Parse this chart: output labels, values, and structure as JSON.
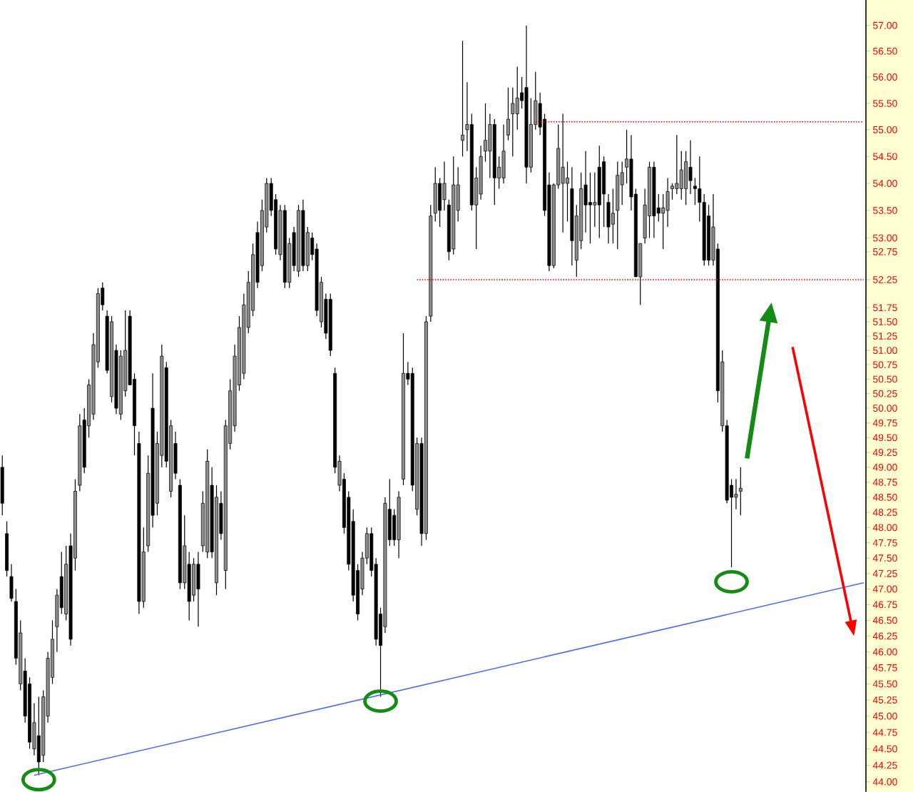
{
  "chart_data": {
    "type": "candlestick",
    "categories": [
      null,
      null,
      null,
      null,
      null,
      null,
      null,
      null,
      null,
      null,
      null,
      null,
      null,
      null,
      null,
      null,
      null,
      null,
      null,
      null,
      null,
      null,
      null,
      null,
      null,
      null,
      null,
      null,
      null,
      null,
      null,
      null,
      null,
      null,
      null,
      null,
      null,
      null,
      null,
      null,
      null,
      null,
      null,
      null,
      null,
      null,
      null,
      null,
      null,
      null,
      null,
      null,
      null,
      null,
      null,
      null,
      null,
      null,
      null,
      null,
      null,
      null,
      null,
      null,
      null,
      null,
      null,
      null,
      null,
      null,
      null,
      null,
      null,
      null,
      null,
      null,
      null,
      null,
      null,
      null,
      null,
      null,
      null,
      null,
      null,
      null,
      null,
      null,
      null,
      null,
      null,
      null,
      null,
      null,
      null,
      null,
      null,
      null,
      null,
      null,
      null,
      null,
      null,
      null,
      null,
      null,
      null,
      null,
      null,
      null,
      null,
      null,
      null,
      null,
      null,
      null,
      null,
      null,
      null,
      null,
      null,
      null,
      null,
      null,
      null,
      null,
      null,
      null,
      null,
      null,
      null,
      null,
      null,
      null,
      null,
      null,
      null,
      null,
      null,
      null,
      null,
      null,
      null,
      null,
      null,
      null,
      null,
      null,
      null,
      null,
      null,
      null,
      null,
      null,
      null,
      null,
      null,
      null,
      null,
      null,
      null,
      null,
      null,
      null,
      null,
      null,
      null,
      null,
      null,
      null,
      null,
      null,
      null,
      null,
      null,
      null,
      null,
      null,
      null,
      null,
      null,
      null,
      null,
      null,
      null,
      null,
      null,
      null,
      null,
      null
    ],
    "ohlc": [
      [
        49.0,
        49.2,
        48.2,
        48.4
      ],
      [
        47.9,
        48.1,
        47.2,
        47.3
      ],
      [
        47.2,
        47.4,
        46.8,
        46.85
      ],
      [
        46.8,
        47.0,
        45.8,
        45.9
      ],
      [
        45.5,
        46.5,
        45.4,
        46.3
      ],
      [
        45.7,
        45.9,
        44.9,
        45.0
      ],
      [
        45.5,
        45.6,
        44.5,
        44.6
      ],
      [
        44.5,
        45.2,
        44.4,
        44.9
      ],
      [
        44.7,
        45.3,
        44.1,
        44.3
      ],
      [
        44.4,
        45.4,
        44.3,
        45.3
      ],
      [
        45.0,
        46.0,
        44.9,
        45.9
      ],
      [
        45.6,
        46.5,
        45.5,
        46.2
      ],
      [
        46.4,
        47.0,
        46.0,
        46.9
      ],
      [
        47.2,
        47.6,
        46.6,
        46.7
      ],
      [
        46.6,
        47.7,
        46.5,
        47.4
      ],
      [
        47.7,
        47.9,
        46.1,
        46.2
      ],
      [
        47.5,
        48.8,
        47.3,
        48.6
      ],
      [
        48.7,
        49.9,
        48.6,
        49.7
      ],
      [
        49.8,
        50.0,
        48.9,
        49.0
      ],
      [
        49.7,
        50.5,
        49.5,
        50.4
      ],
      [
        49.9,
        51.3,
        49.8,
        51.1
      ],
      [
        50.8,
        52.1,
        50.7,
        52.0
      ],
      [
        52.1,
        52.2,
        51.7,
        51.8
      ],
      [
        51.6,
        51.7,
        50.6,
        50.65
      ],
      [
        50.2,
        51.6,
        50.1,
        51.5
      ],
      [
        51.0,
        51.1,
        49.9,
        50.0
      ],
      [
        49.9,
        51.0,
        49.8,
        50.9
      ],
      [
        50.3,
        51.7,
        50.2,
        51.0
      ],
      [
        51.6,
        51.7,
        50.4,
        50.4
      ],
      [
        50.5,
        50.6,
        49.2,
        49.7
      ],
      [
        49.4,
        49.6,
        46.6,
        46.8
      ],
      [
        46.8,
        48.0,
        46.7,
        47.6
      ],
      [
        47.7,
        49.2,
        47.6,
        48.9
      ],
      [
        50.0,
        50.6,
        48.0,
        48.2
      ],
      [
        48.4,
        49.6,
        48.2,
        49.4
      ],
      [
        49.2,
        51.1,
        49.0,
        50.9
      ],
      [
        50.7,
        50.8,
        49.0,
        49.1
      ],
      [
        48.6,
        49.8,
        48.5,
        49.7
      ],
      [
        49.4,
        49.6,
        48.8,
        48.9
      ],
      [
        48.7,
        48.8,
        47.0,
        47.1
      ],
      [
        47.1,
        48.2,
        47.0,
        47.7
      ],
      [
        47.4,
        47.6,
        46.5,
        46.8
      ],
      [
        46.9,
        47.5,
        46.8,
        47.4
      ],
      [
        47.4,
        47.6,
        46.4,
        47.0
      ],
      [
        47.7,
        48.6,
        47.6,
        48.4
      ],
      [
        47.6,
        49.3,
        47.5,
        49.1
      ],
      [
        48.7,
        49.0,
        47.5,
        47.6
      ],
      [
        47.1,
        48.7,
        46.9,
        48.5
      ],
      [
        48.4,
        48.6,
        47.8,
        47.9
      ],
      [
        47.3,
        49.8,
        47.0,
        49.7
      ],
      [
        49.4,
        50.5,
        49.3,
        50.3
      ],
      [
        49.7,
        51.1,
        49.6,
        50.9
      ],
      [
        50.4,
        51.6,
        50.3,
        51.4
      ],
      [
        50.6,
        52.0,
        50.5,
        51.8
      ],
      [
        51.4,
        52.4,
        51.3,
        52.2
      ],
      [
        51.7,
        52.9,
        51.6,
        52.7
      ],
      [
        53.1,
        53.3,
        52.1,
        52.2
      ],
      [
        52.5,
        53.7,
        52.4,
        53.5
      ],
      [
        53.2,
        54.1,
        53.1,
        54.0
      ],
      [
        54.0,
        54.1,
        53.4,
        53.5
      ],
      [
        53.7,
        53.8,
        52.7,
        52.8
      ],
      [
        52.7,
        53.6,
        52.6,
        53.5
      ],
      [
        53.5,
        53.6,
        52.1,
        52.2
      ],
      [
        52.2,
        53.0,
        52.1,
        52.9
      ],
      [
        53.1,
        53.2,
        52.4,
        52.5
      ],
      [
        52.4,
        53.6,
        52.3,
        53.5
      ],
      [
        53.5,
        53.7,
        52.4,
        52.5
      ],
      [
        52.5,
        53.2,
        52.4,
        53.1
      ],
      [
        53.0,
        53.1,
        52.6,
        52.7
      ],
      [
        52.8,
        52.9,
        51.6,
        51.7
      ],
      [
        51.5,
        52.3,
        51.4,
        52.2
      ],
      [
        51.9,
        52.0,
        51.2,
        51.3
      ],
      [
        51.9,
        52.0,
        50.9,
        51.0
      ],
      [
        50.6,
        50.7,
        48.9,
        49.0
      ],
      [
        48.7,
        49.2,
        48.6,
        49.1
      ],
      [
        48.8,
        48.9,
        47.9,
        48.0
      ],
      [
        48.5,
        48.6,
        47.3,
        47.4
      ],
      [
        48.1,
        48.3,
        46.8,
        46.9
      ],
      [
        47.3,
        47.4,
        46.5,
        46.6
      ],
      [
        47.0,
        47.6,
        46.9,
        47.5
      ],
      [
        47.5,
        48.0,
        47.4,
        47.9
      ],
      [
        47.9,
        48.0,
        47.2,
        47.3
      ],
      [
        47.4,
        47.5,
        46.1,
        46.2
      ],
      [
        46.6,
        46.7,
        45.3,
        46.1
      ],
      [
        46.4,
        48.5,
        46.3,
        48.4
      ],
      [
        48.3,
        48.8,
        47.7,
        47.8
      ],
      [
        48.2,
        48.3,
        47.7,
        47.8
      ],
      [
        47.8,
        48.6,
        47.5,
        48.5
      ],
      [
        48.8,
        51.3,
        48.7,
        50.6
      ],
      [
        50.6,
        50.8,
        50.4,
        50.5
      ],
      [
        50.6,
        50.7,
        48.6,
        48.7
      ],
      [
        48.3,
        49.5,
        48.2,
        49.4
      ],
      [
        49.4,
        49.5,
        47.7,
        47.9
      ],
      [
        47.9,
        51.6,
        47.8,
        51.5
      ],
      [
        51.6,
        53.6,
        51.5,
        53.4
      ],
      [
        53.45,
        54.3,
        53.3,
        54.0
      ],
      [
        54.0,
        54.1,
        53.2,
        53.5
      ],
      [
        53.7,
        54.4,
        53.5,
        54.0
      ],
      [
        53.6,
        53.7,
        52.6,
        52.75
      ],
      [
        52.8,
        54.5,
        52.7,
        53.97
      ],
      [
        53.5,
        54.3,
        53.3,
        53.97
      ],
      [
        54.8,
        56.7,
        54.5,
        54.9
      ],
      [
        55.0,
        55.9,
        54.6,
        55.1
      ],
      [
        55.1,
        55.3,
        53.5,
        53.6
      ],
      [
        53.6,
        54.3,
        52.8,
        54.1
      ],
      [
        53.8,
        54.7,
        53.7,
        54.5
      ],
      [
        54.6,
        55.5,
        54.4,
        54.8
      ],
      [
        54.6,
        55.3,
        54.1,
        55.1
      ],
      [
        55.1,
        55.2,
        53.6,
        54.1
      ],
      [
        54.1,
        54.5,
        53.9,
        54.3
      ],
      [
        54.1,
        55.1,
        54.0,
        54.6
      ],
      [
        54.9,
        55.8,
        54.8,
        55.2
      ],
      [
        55.3,
        55.8,
        54.5,
        55.5
      ],
      [
        55.3,
        56.2,
        55.0,
        55.6
      ],
      [
        55.7,
        56.0,
        55.4,
        55.55
      ],
      [
        55.8,
        57.0,
        54.0,
        54.3
      ],
      [
        54.3,
        55.6,
        54.2,
        55.1
      ],
      [
        55.1,
        56.1,
        55.0,
        55.55
      ],
      [
        55.5,
        55.7,
        54.9,
        55.05
      ],
      [
        55.2,
        55.3,
        53.4,
        53.5
      ],
      [
        53.97,
        54.2,
        52.4,
        52.5
      ],
      [
        52.5,
        54.0,
        52.45,
        53.97
      ],
      [
        53.97,
        55.1,
        53.9,
        54.65
      ],
      [
        54.0,
        55.3,
        53.1,
        54.3
      ],
      [
        54.0,
        54.4,
        53.3,
        54.1
      ],
      [
        53.9,
        54.3,
        52.5,
        52.95
      ],
      [
        52.6,
        53.6,
        52.3,
        53.4
      ],
      [
        52.95,
        54.2,
        52.8,
        53.9
      ],
      [
        53.97,
        54.6,
        53.1,
        53.6
      ],
      [
        53.65,
        54.2,
        52.9,
        53.6
      ],
      [
        53.6,
        54.2,
        53.2,
        53.65
      ],
      [
        54.3,
        54.7,
        53.0,
        53.6
      ],
      [
        54.4,
        54.5,
        53.2,
        53.8
      ],
      [
        53.65,
        53.8,
        52.9,
        53.2
      ],
      [
        53.25,
        53.9,
        52.9,
        53.45
      ],
      [
        53.5,
        54.4,
        52.8,
        54.15
      ],
      [
        53.97,
        54.4,
        53.6,
        54.2
      ],
      [
        54.3,
        55.0,
        54.0,
        54.45
      ],
      [
        54.45,
        54.9,
        53.5,
        53.75
      ],
      [
        53.8,
        53.9,
        52.3,
        52.3
      ],
      [
        52.3,
        52.9,
        51.8,
        52.9
      ],
      [
        53.0,
        53.9,
        52.9,
        53.6
      ],
      [
        53.4,
        54.4,
        53.0,
        54.3
      ],
      [
        54.3,
        54.4,
        53.0,
        53.4
      ],
      [
        53.55,
        53.8,
        53.3,
        53.45
      ],
      [
        53.45,
        53.8,
        52.8,
        53.55
      ],
      [
        53.5,
        54.1,
        53.2,
        53.85
      ],
      [
        53.9,
        54.0,
        53.7,
        53.95
      ],
      [
        53.9,
        54.9,
        53.8,
        54.0
      ],
      [
        53.9,
        54.6,
        53.7,
        54.25
      ],
      [
        53.9,
        54.6,
        53.6,
        54.4
      ],
      [
        54.3,
        54.8,
        53.8,
        54.05
      ],
      [
        53.95,
        54.1,
        53.6,
        53.9
      ],
      [
        53.9,
        54.5,
        53.3,
        53.65
      ],
      [
        53.65,
        53.8,
        52.5,
        52.6
      ],
      [
        53.4,
        53.6,
        52.5,
        52.6
      ],
      [
        52.6,
        53.8,
        52.5,
        53.2
      ],
      [
        52.8,
        52.9,
        50.1,
        50.3
      ],
      [
        49.7,
        51.0,
        49.6,
        50.8
      ],
      [
        49.7,
        49.8,
        48.4,
        48.45
      ],
      [
        48.7,
        48.8,
        47.35,
        48.5
      ],
      [
        48.5,
        48.8,
        48.3,
        48.55
      ],
      [
        48.6,
        49.0,
        48.2,
        48.65
      ],
      null,
      null,
      null,
      null,
      null,
      null,
      null,
      null,
      null,
      null,
      null,
      null,
      null,
      null,
      null,
      null,
      null,
      null,
      null,
      null,
      null,
      null,
      null,
      null,
      null,
      null,
      null
    ],
    "colors": [
      "#000000",
      "#000000",
      "#000000",
      "#000000",
      "#8c8c8c",
      "#000000",
      "#000000",
      "#8c8c8c",
      "#000000",
      "#8c8c8c",
      "#8c8c8c",
      "#8c8c8c",
      "#8c8c8c",
      "#000000",
      "#8c8c8c",
      "#000000",
      "#8c8c8c",
      "#8c8c8c",
      "#000000",
      "#8c8c8c",
      "#8c8c8c",
      "#8c8c8c",
      "#000000",
      "#000000",
      "#8c8c8c",
      "#000000",
      "#8c8c8c",
      "#8c8c8c",
      "#000000",
      "#000000",
      "#000000",
      "#8c8c8c",
      "#8c8c8c",
      "#000000",
      "#8c8c8c",
      "#8c8c8c",
      "#000000",
      "#8c8c8c",
      "#000000",
      "#000000",
      "#8c8c8c",
      "#000000",
      "#8c8c8c",
      "#000000",
      "#8c8c8c",
      "#8c8c8c",
      "#000000",
      "#8c8c8c",
      "#000000",
      "#8c8c8c",
      "#8c8c8c",
      "#8c8c8c",
      "#8c8c8c",
      "#8c8c8c",
      "#8c8c8c",
      "#8c8c8c",
      "#000000",
      "#8c8c8c",
      "#8c8c8c",
      "#000000",
      "#000000",
      "#8c8c8c",
      "#000000",
      "#8c8c8c",
      "#000000",
      "#8c8c8c",
      "#000000",
      "#8c8c8c",
      "#000000",
      "#000000",
      "#8c8c8c",
      "#000000",
      "#000000",
      "#000000",
      "#8c8c8c",
      "#000000",
      "#000000",
      "#000000",
      "#000000",
      "#8c8c8c",
      "#8c8c8c",
      "#000000",
      "#000000",
      "#000000",
      "#8c8c8c",
      "#000000",
      "#000000",
      "#8c8c8c",
      "#8c8c8c",
      "#000000",
      "#000000",
      "#8c8c8c",
      "#000000",
      "#8c8c8c",
      "#8c8c8c",
      "#8c8c8c",
      "#000000",
      "#8c8c8c",
      "#000000",
      "#8c8c8c",
      "#8c8c8c",
      "#8c8c8c",
      "#8c8c8c",
      "#000000",
      "#8c8c8c",
      "#8c8c8c",
      "#8c8c8c",
      "#8c8c8c",
      "#000000",
      "#8c8c8c",
      "#8c8c8c",
      "#8c8c8c",
      "#8c8c8c",
      "#8c8c8c",
      "#000000",
      "#000000",
      "#8c8c8c",
      "#8c8c8c",
      "#000000",
      "#000000",
      "#000000",
      "#8c8c8c",
      "#8c8c8c",
      "#8c8c8c",
      "#8c8c8c",
      "#000000",
      "#8c8c8c",
      "#8c8c8c",
      "#000000",
      "#000000",
      "#8c8c8c",
      "#000000",
      "#000000",
      "#000000",
      "#8c8c8c",
      "#8c8c8c",
      "#8c8c8c",
      "#8c8c8c",
      "#000000",
      "#000000",
      "#8c8c8c",
      "#8c8c8c",
      "#8c8c8c",
      "#000000",
      "#000000",
      "#8c8c8c",
      "#8c8c8c",
      "#8c8c8c",
      "#8c8c8c",
      "#8c8c8c",
      "#8c8c8c",
      "#000000",
      "#000000",
      "#000000",
      "#000000",
      "#000000",
      "#8c8c8c",
      "#000000",
      "#8c8c8c",
      "#000000",
      "#000000",
      "#8c8c8c",
      "#8c8c8c",
      null,
      null,
      null,
      null,
      null,
      null,
      null,
      null,
      null,
      null,
      null,
      null,
      null,
      null,
      null,
      null,
      null,
      null,
      null,
      null,
      null,
      null,
      null,
      null,
      null,
      null,
      null
    ],
    "series": [
      {
        "type": "line",
        "color": "#4a6cf7",
        "values": [
          null,
          null,
          null,
          null,
          null,
          null,
          null,
          44.1,
          null,
          null,
          null,
          null,
          null,
          null,
          null,
          null,
          null,
          null,
          null,
          null,
          null,
          null,
          null,
          null,
          null,
          null,
          null,
          null,
          null,
          null,
          null,
          null,
          null,
          null,
          null,
          null,
          null,
          null,
          null,
          null,
          null,
          null,
          null,
          null,
          null,
          null,
          null,
          null,
          null,
          null,
          null,
          null,
          null,
          null,
          null,
          null,
          null,
          null,
          null,
          null,
          null,
          null,
          null,
          null,
          null,
          null,
          null,
          null,
          null,
          null,
          null,
          null,
          null,
          null,
          null,
          null,
          null,
          null,
          null,
          null,
          null,
          null,
          null,
          null,
          null,
          null,
          null,
          null,
          null,
          null,
          null,
          null,
          null,
          null,
          null,
          null,
          null,
          null,
          null,
          null,
          null,
          null,
          null,
          null,
          null,
          null,
          null,
          null,
          null,
          null,
          null,
          null,
          null,
          null,
          null,
          null,
          null,
          null,
          null,
          null,
          null,
          null,
          null,
          null,
          null,
          null,
          null,
          null,
          null,
          null,
          null,
          null,
          null,
          null,
          null,
          null,
          null,
          null,
          null,
          null,
          null,
          null,
          null,
          null,
          null,
          null,
          null,
          null,
          null,
          null,
          null,
          null,
          null,
          null,
          null,
          null,
          null,
          null,
          null,
          null,
          null,
          null,
          null,
          null,
          null,
          null,
          null,
          null,
          null,
          null,
          null,
          null,
          null,
          null,
          null,
          null,
          null,
          null,
          null,
          null,
          null,
          null,
          null,
          null,
          null,
          null,
          null,
          null,
          null,
          47.1
        ]
      },
      {
        "type": "line",
        "color": "#ff0000",
        "line_style": "dotted",
        "values": [
          null,
          null,
          null,
          null,
          null,
          null,
          null,
          null,
          null,
          null,
          null,
          null,
          null,
          null,
          null,
          null,
          null,
          null,
          null,
          null,
          null,
          null,
          null,
          null,
          null,
          null,
          null,
          null,
          null,
          null,
          null,
          null,
          null,
          null,
          null,
          null,
          null,
          null,
          null,
          null,
          null,
          null,
          null,
          null,
          null,
          null,
          null,
          null,
          null,
          null,
          null,
          null,
          null,
          null,
          null,
          null,
          null,
          null,
          null,
          null,
          null,
          null,
          null,
          null,
          null,
          null,
          null,
          null,
          null,
          null,
          null,
          null,
          null,
          null,
          null,
          null,
          null,
          null,
          null,
          null,
          null,
          null,
          null,
          null,
          null,
          null,
          null,
          null,
          null,
          null,
          null,
          null,
          null,
          null,
          null,
          null,
          null,
          null,
          null,
          null,
          null,
          null,
          null,
          null,
          null,
          null,
          null,
          null,
          null,
          null,
          null,
          null,
          null,
          null,
          null,
          null,
          null,
          55.15,
          null,
          null,
          null,
          null,
          null,
          null,
          null,
          null,
          null,
          null,
          null,
          null,
          null,
          null,
          null,
          null,
          null,
          null,
          null,
          null,
          null,
          null,
          null,
          null,
          null,
          null,
          null,
          null,
          null,
          null,
          null,
          null,
          null,
          null,
          null,
          null,
          null,
          null,
          null,
          null,
          null,
          null,
          null,
          null,
          null,
          null,
          null,
          null,
          null,
          null,
          null,
          null,
          null,
          null,
          null,
          null,
          null,
          null,
          null,
          null,
          null,
          null,
          null,
          null,
          null,
          null,
          null,
          null,
          null,
          null,
          null,
          55.15
        ]
      },
      {
        "type": "line",
        "color": "#ff0000",
        "line_style": "dotted",
        "values": [
          null,
          null,
          null,
          null,
          null,
          null,
          null,
          null,
          null,
          null,
          null,
          null,
          null,
          null,
          null,
          null,
          null,
          null,
          null,
          null,
          null,
          null,
          null,
          null,
          null,
          null,
          null,
          null,
          null,
          null,
          null,
          null,
          null,
          null,
          null,
          null,
          null,
          null,
          null,
          null,
          null,
          null,
          null,
          null,
          null,
          null,
          null,
          null,
          null,
          null,
          null,
          null,
          null,
          null,
          null,
          null,
          null,
          null,
          null,
          null,
          null,
          null,
          null,
          null,
          null,
          null,
          null,
          null,
          null,
          null,
          null,
          null,
          null,
          null,
          null,
          null,
          null,
          null,
          null,
          null,
          null,
          null,
          null,
          null,
          null,
          null,
          null,
          null,
          null,
          null,
          null,
          52.25,
          null,
          null,
          null,
          null,
          null,
          null,
          null,
          null,
          null,
          null,
          null,
          null,
          null,
          null,
          null,
          null,
          null,
          null,
          null,
          null,
          null,
          null,
          null,
          null,
          null,
          null,
          null,
          null,
          null,
          null,
          null,
          null,
          null,
          null,
          null,
          null,
          null,
          null,
          null,
          null,
          null,
          null,
          null,
          null,
          null,
          null,
          null,
          null,
          null,
          null,
          null,
          null,
          null,
          null,
          null,
          null,
          null,
          null,
          null,
          null,
          null,
          null,
          null,
          null,
          null,
          null,
          null,
          null,
          null,
          null,
          null,
          null,
          null,
          null,
          null,
          null,
          null,
          null,
          null,
          null,
          null,
          null,
          null,
          null,
          null,
          null,
          null,
          null,
          null,
          null,
          null,
          null,
          null,
          null,
          null,
          null,
          null,
          52.25
        ]
      }
    ],
    "ylim": [
      43.85,
      57.5
    ],
    "log": "y",
    "tick_labels": "y",
    "yticks": [
      {
        "value": 57,
        "label": "57.00"
      },
      {
        "value": 56.5,
        "label": "56.50"
      },
      {
        "value": 56,
        "label": "56.00"
      },
      {
        "value": 55.5,
        "label": "55.50"
      },
      {
        "value": 55,
        "label": "55.00"
      },
      {
        "value": 54.5,
        "label": "54.50"
      },
      {
        "value": 54,
        "label": "54.00"
      },
      {
        "value": 53.5,
        "label": "53.50"
      },
      {
        "value": 53,
        "label": "53.00"
      },
      {
        "value": 52.75,
        "label": "52.75"
      },
      {
        "value": 52.25,
        "label": "52.25"
      },
      {
        "value": 51.75,
        "label": "51.75"
      },
      {
        "value": 51.5,
        "label": "51.50"
      },
      {
        "value": 51.25,
        "label": "51.25"
      },
      {
        "value": 51,
        "label": "51.00"
      },
      {
        "value": 50.75,
        "label": "50.75"
      },
      {
        "value": 50.5,
        "label": "50.50"
      },
      {
        "value": 50.25,
        "label": "50.25"
      },
      {
        "value": 50,
        "label": "50.00"
      },
      {
        "value": 49.75,
        "label": "49.75"
      },
      {
        "value": 49.5,
        "label": "49.50"
      },
      {
        "value": 49.25,
        "label": "49.25"
      },
      {
        "value": 49,
        "label": "49.00"
      },
      {
        "value": 48.75,
        "label": "48.75"
      },
      {
        "value": 48.5,
        "label": "48.50"
      },
      {
        "value": 48.25,
        "label": "48.25"
      },
      {
        "value": 48,
        "label": "48.00"
      },
      {
        "value": 47.75,
        "label": "47.75"
      },
      {
        "value": 47.5,
        "label": "47.50"
      },
      {
        "value": 47.25,
        "label": "47.25"
      },
      {
        "value": 47,
        "label": "47.00"
      },
      {
        "value": 46.75,
        "label": "46.75"
      },
      {
        "value": 46.5,
        "label": "46.50"
      },
      {
        "value": 46.25,
        "label": "46.25"
      },
      {
        "value": 46,
        "label": "46.00"
      },
      {
        "value": 45.75,
        "label": "45.75"
      },
      {
        "value": 45.5,
        "label": "45.50"
      },
      {
        "value": 45.25,
        "label": "45.25"
      },
      {
        "value": 45,
        "label": "45.00"
      },
      {
        "value": 44.75,
        "label": "44.75"
      },
      {
        "value": 44.5,
        "label": "44.50"
      },
      {
        "value": 44.25,
        "label": "44.25"
      },
      {
        "value": 44,
        "label": "44.00"
      }
    ]
  }
}
